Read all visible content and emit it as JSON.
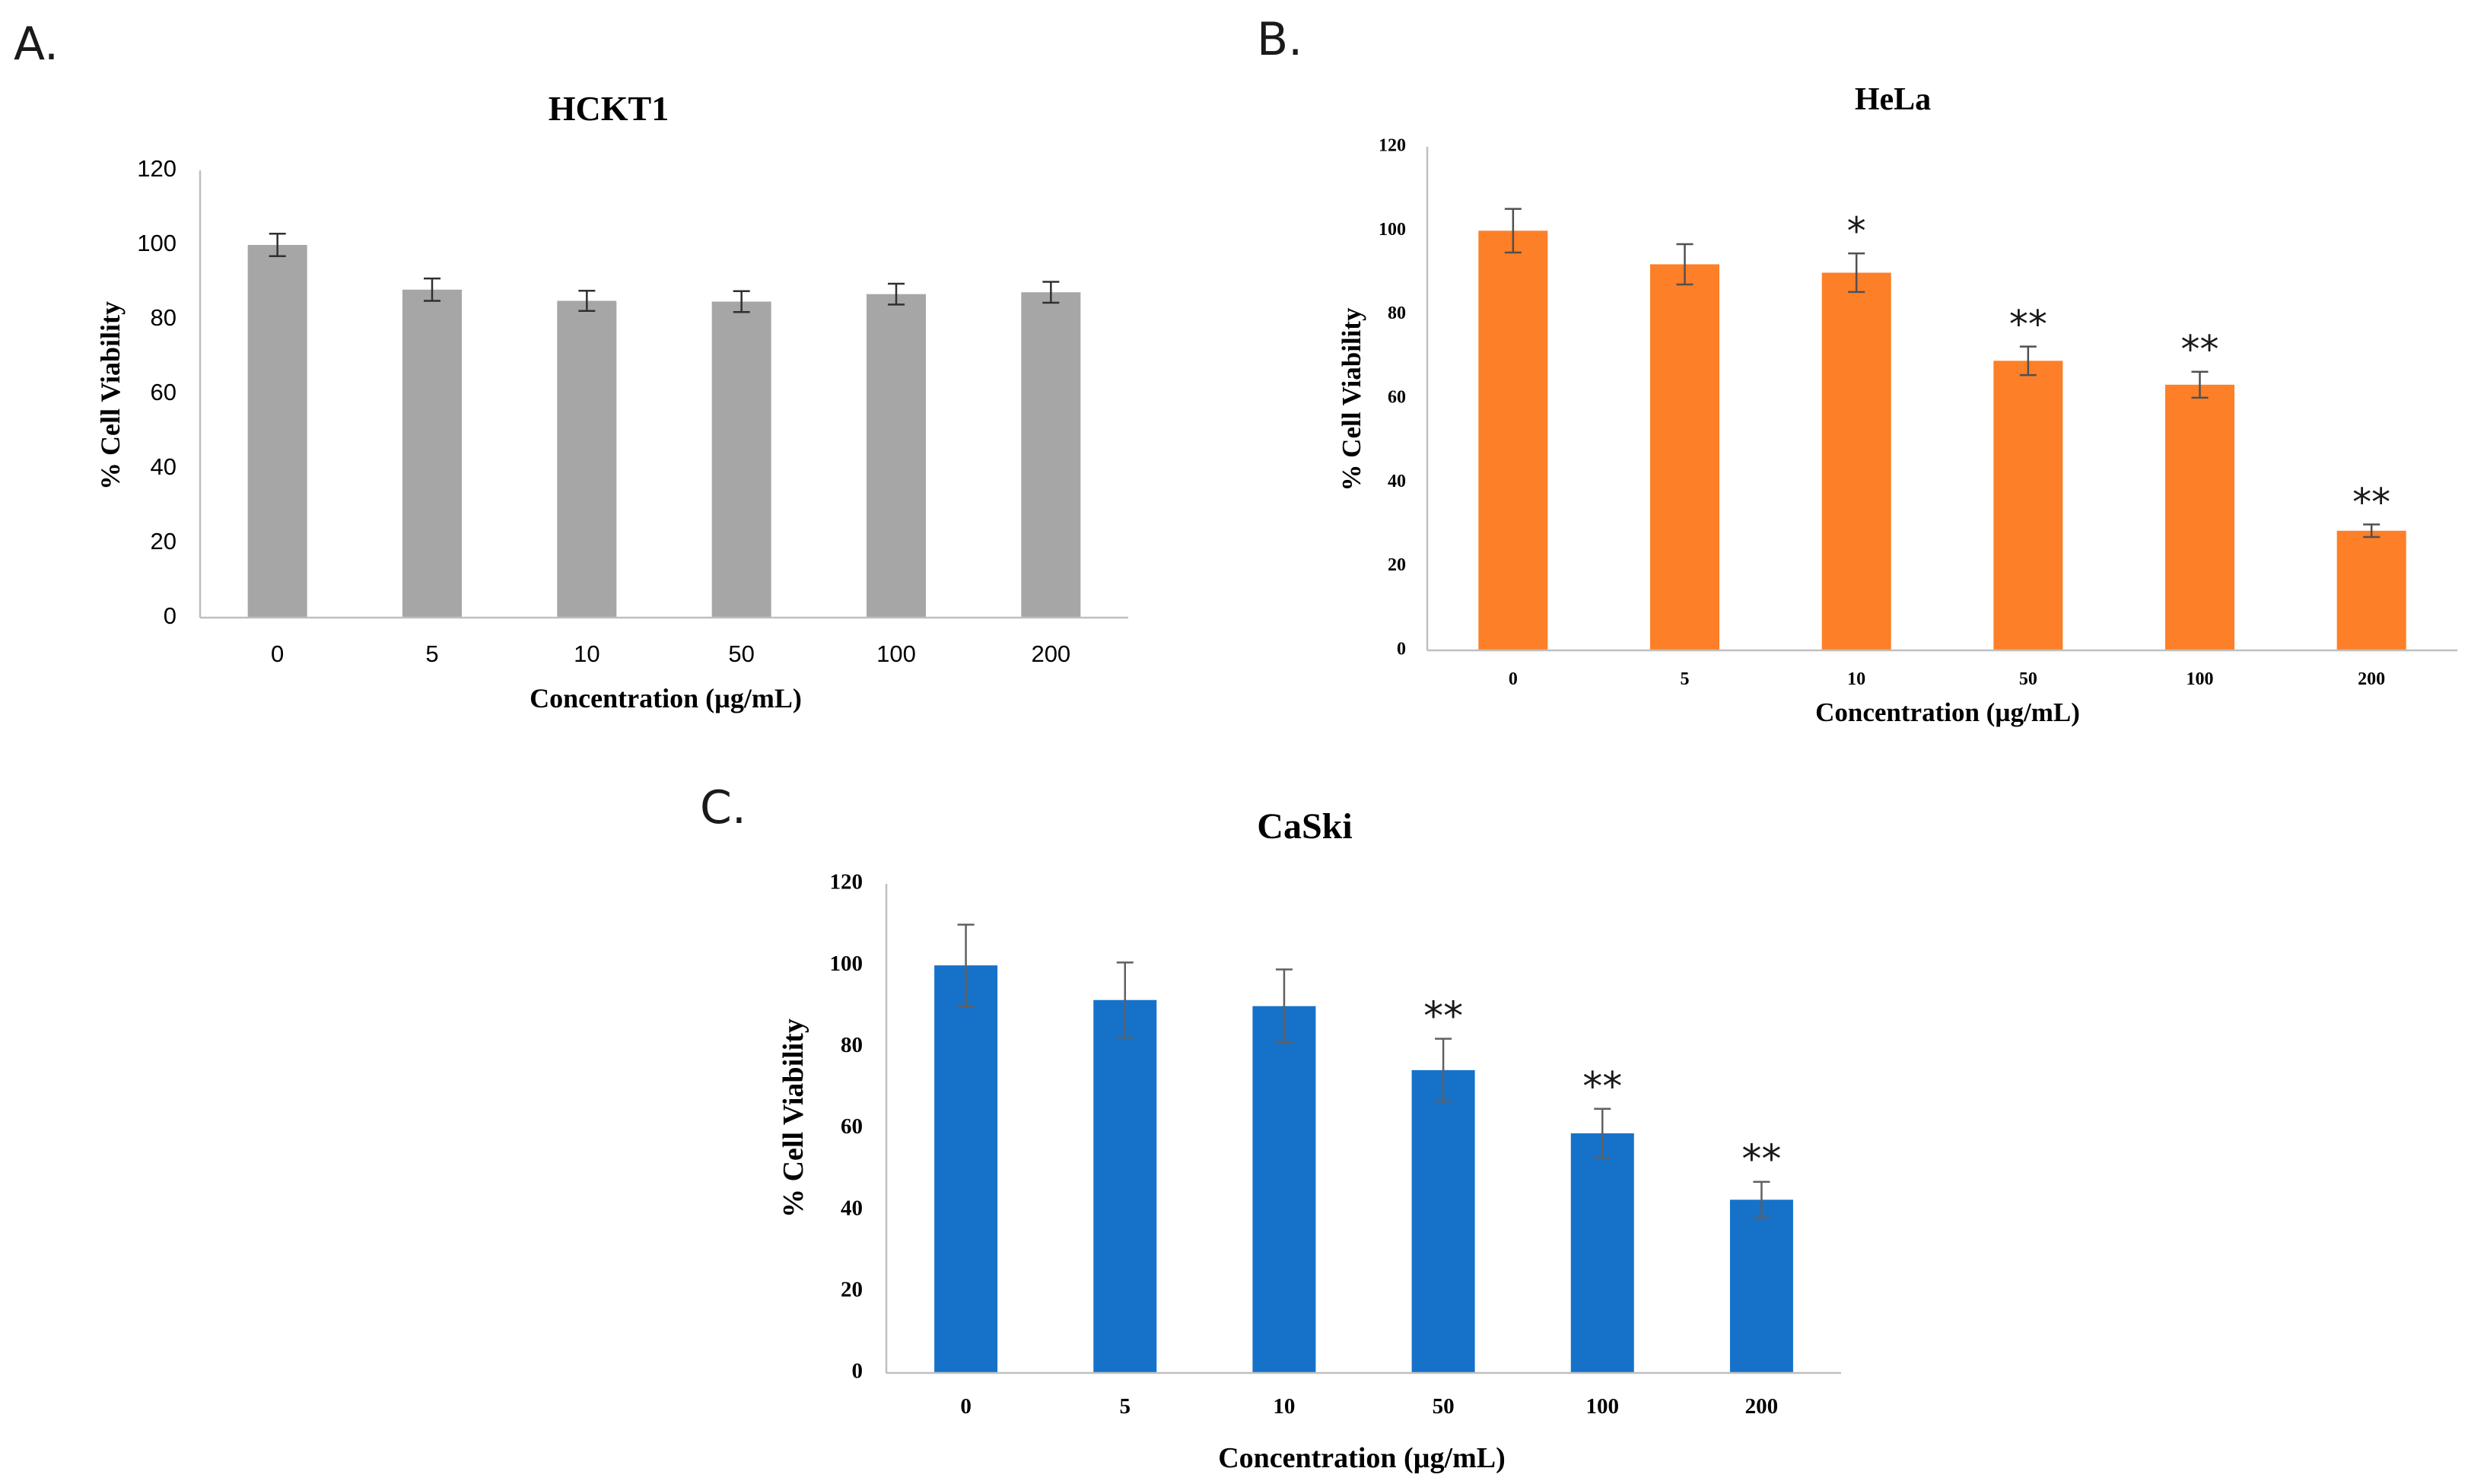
{
  "figure": {
    "panel_letters": [
      "A.",
      "B.",
      "C."
    ]
  },
  "chart_data": [
    {
      "type": "bar",
      "panel": "A.",
      "title": "HCKT1",
      "xlabel": "Concentration (µg/mL)",
      "ylabel": "% Cell Viability",
      "categories": [
        "0",
        "5",
        "10",
        "50",
        "100",
        "200"
      ],
      "values": [
        100,
        88,
        85,
        84.8,
        86.8,
        87.3
      ],
      "errors": [
        3,
        3,
        2.7,
        2.8,
        2.8,
        2.8
      ],
      "significance": [
        "",
        "",
        "",
        "",
        "",
        ""
      ],
      "ylim": [
        0,
        120
      ],
      "yticks": [
        "0",
        "20",
        "40",
        "60",
        "80",
        "100",
        "120"
      ],
      "bar_color": "#a6a6a6",
      "grid": false
    },
    {
      "type": "bar",
      "panel": "B.",
      "title": "HeLa",
      "xlabel": "Concentration (µg/mL)",
      "ylabel": "% Cell Viability",
      "categories": [
        "0",
        "5",
        "10",
        "50",
        "100",
        "200"
      ],
      "values": [
        100,
        92,
        90,
        69,
        63.3,
        28.5
      ],
      "errors": [
        5.2,
        4.8,
        4.6,
        3.4,
        3.1,
        1.5
      ],
      "significance": [
        "",
        "",
        "*",
        "**",
        "**",
        "**"
      ],
      "ylim": [
        0,
        120
      ],
      "yticks": [
        "0",
        "20",
        "40",
        "60",
        "80",
        "100",
        "120"
      ],
      "bar_color": "#fd7f27",
      "grid": false
    },
    {
      "type": "bar",
      "panel": "C.",
      "title": "CaSki",
      "xlabel": "Concentration (µg/mL)",
      "ylabel": "% Cell Viability",
      "categories": [
        "0",
        "5",
        "10",
        "50",
        "100",
        "200"
      ],
      "values": [
        100,
        91.5,
        90,
        74.3,
        58.8,
        42.5
      ],
      "errors": [
        10,
        9.2,
        9,
        7.7,
        6,
        4.4
      ],
      "significance": [
        "",
        "",
        "",
        "**",
        "**",
        "**"
      ],
      "ylim": [
        0,
        120
      ],
      "yticks": [
        "0",
        "20",
        "40",
        "60",
        "80",
        "100",
        "120"
      ],
      "bar_color": "#1672c9",
      "grid": false
    }
  ]
}
